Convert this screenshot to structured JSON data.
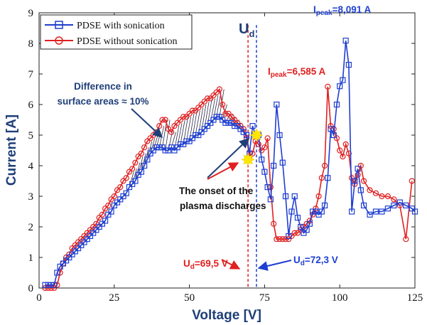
{
  "chart_data": {
    "type": "line",
    "xlabel": "Voltage [V]",
    "ylabel": "Current [A]",
    "xlim": [
      0,
      125
    ],
    "ylim": [
      0,
      9
    ],
    "xticks": [
      "0",
      "25",
      "50",
      "75",
      "100",
      "125"
    ],
    "yticks": [
      "0",
      "1",
      "2",
      "3",
      "4",
      "5",
      "6",
      "7",
      "8",
      "9"
    ],
    "legend_position": "top-left",
    "series": [
      {
        "name": "PDSE with sonication",
        "color": "#1f3fd0",
        "marker": "square",
        "x": [
          2,
          3,
          4,
          5,
          6,
          7,
          8,
          9,
          10,
          11,
          12,
          13,
          14,
          15,
          16,
          17,
          18,
          19,
          20,
          21,
          22,
          23,
          24,
          25,
          26,
          27,
          28,
          29,
          30,
          31,
          32,
          33,
          34,
          35,
          36,
          37,
          38,
          39,
          40,
          41,
          42,
          43,
          44,
          45,
          46,
          47,
          48,
          49,
          50,
          51,
          52,
          53,
          54,
          55,
          56,
          57,
          58,
          59,
          60,
          61,
          62,
          63,
          64,
          65,
          66,
          67,
          68,
          69,
          70,
          71,
          72,
          73,
          74,
          75,
          76,
          77,
          78,
          79,
          80,
          81,
          82,
          83,
          84,
          85,
          86,
          87,
          88,
          89,
          90,
          91,
          92,
          93,
          94,
          95,
          96,
          97,
          98,
          99,
          100,
          101,
          102,
          103,
          104,
          105,
          106,
          107,
          108,
          110,
          112,
          114,
          116,
          118,
          120,
          122,
          124,
          125
        ],
        "y": [
          0.1,
          0.1,
          0.1,
          0.1,
          0.5,
          0.7,
          0.8,
          0.9,
          1.0,
          1.1,
          1.2,
          1.3,
          1.4,
          1.5,
          1.6,
          1.7,
          1.8,
          1.9,
          2.0,
          2.1,
          2.2,
          2.4,
          2.5,
          2.7,
          2.8,
          2.9,
          3.0,
          3.1,
          3.3,
          3.4,
          3.5,
          3.7,
          3.8,
          4.0,
          4.2,
          4.4,
          4.5,
          4.6,
          4.6,
          4.6,
          4.5,
          4.5,
          4.6,
          4.5,
          4.6,
          4.7,
          4.7,
          4.8,
          4.8,
          4.9,
          5.0,
          5.0,
          5.1,
          5.2,
          5.3,
          5.4,
          5.5,
          5.6,
          5.6,
          5.5,
          5.4,
          5.4,
          5.4,
          5.3,
          5.3,
          5.2,
          5.1,
          5.0,
          4.4,
          5.3,
          5.0,
          5.0,
          4.2,
          3.8,
          3.3,
          2.9,
          4.0,
          6.0,
          5.0,
          4.1,
          3.0,
          1.7,
          2.5,
          3.0,
          2.3,
          2.0,
          1.8,
          1.9,
          2.1,
          2.5,
          2.5,
          2.4,
          2.5,
          2.7,
          3.6,
          5.2,
          5.0,
          6.0,
          6.6,
          6.8,
          8.09,
          7.3,
          2.5,
          3.5,
          3.9,
          3.2,
          2.7,
          2.4,
          2.5,
          2.5,
          2.6,
          2.7,
          2.8,
          2.7,
          2.6,
          2.5
        ]
      },
      {
        "name": "PDSE without sonication",
        "color": "#e02020",
        "marker": "circle",
        "x": [
          2,
          3,
          4,
          5,
          6,
          7,
          8,
          9,
          10,
          11,
          12,
          13,
          14,
          15,
          16,
          17,
          18,
          19,
          20,
          21,
          22,
          23,
          24,
          25,
          26,
          27,
          28,
          29,
          30,
          31,
          32,
          33,
          34,
          35,
          36,
          37,
          38,
          39,
          40,
          41,
          42,
          43,
          44,
          45,
          46,
          47,
          48,
          49,
          50,
          51,
          52,
          53,
          54,
          55,
          56,
          57,
          58,
          59,
          60,
          61,
          62,
          63,
          64,
          65,
          66,
          67,
          68,
          69,
          70,
          71,
          72,
          73,
          74,
          75,
          76,
          77,
          78,
          79,
          80,
          81,
          82,
          83,
          84,
          85,
          86,
          87,
          88,
          89,
          90,
          91,
          92,
          93,
          94,
          95,
          96,
          97,
          98,
          99,
          100,
          101,
          102,
          103,
          104,
          105,
          106,
          107,
          108,
          110,
          112,
          114,
          116,
          118,
          120,
          122,
          124
        ],
        "y": [
          0.0,
          0.0,
          0.0,
          0.0,
          0.1,
          0.5,
          0.8,
          1.0,
          1.1,
          1.3,
          1.4,
          1.5,
          1.6,
          1.7,
          1.8,
          1.9,
          2.0,
          2.1,
          2.3,
          2.4,
          2.6,
          2.7,
          2.9,
          3.0,
          3.2,
          3.3,
          3.5,
          3.6,
          3.8,
          3.9,
          4.1,
          4.3,
          4.4,
          4.6,
          4.8,
          4.9,
          5.0,
          5.1,
          5.3,
          5.5,
          5.5,
          5.2,
          5.1,
          5.3,
          5.4,
          5.5,
          5.6,
          5.6,
          5.7,
          5.8,
          5.8,
          5.9,
          6.0,
          6.1,
          6.2,
          6.2,
          6.3,
          6.4,
          6.5,
          6.0,
          5.7,
          5.7,
          5.6,
          5.5,
          5.4,
          5.3,
          5.2,
          4.9,
          4.3,
          4.4,
          4.8,
          4.7,
          4.5,
          4.6,
          4.9,
          3.3,
          2.1,
          1.6,
          1.6,
          1.6,
          1.6,
          1.6,
          1.7,
          1.8,
          1.8,
          1.9,
          2.0,
          2.1,
          2.2,
          2.4,
          2.6,
          3.0,
          3.6,
          4.0,
          6.585,
          5.3,
          5.2,
          4.9,
          4.5,
          4.3,
          4.7,
          4.4,
          3.6,
          3.4,
          3.7,
          4.0,
          3.5,
          3.2,
          3.1,
          3.0,
          3.0,
          2.9,
          2.7,
          1.6,
          3.5
        ]
      }
    ],
    "vlines": [
      {
        "x": 69.5,
        "color": "#e02020",
        "style": "dashed"
      },
      {
        "x": 72.3,
        "color": "#1f3fd0",
        "style": "dashed"
      }
    ],
    "highlights": [
      {
        "x": 69.5,
        "y": 4.2,
        "color": "#ffe600"
      },
      {
        "x": 72.3,
        "y": 5.0,
        "color": "#ffe600"
      }
    ],
    "annotations": {
      "ud_top_main": "U",
      "ud_top_sub": "d",
      "ipeak_blue_main": "I",
      "ipeak_blue_sub": "peak",
      "ipeak_blue_value": "=8,091 A",
      "ipeak_red_main": "I",
      "ipeak_red_sub": "peak",
      "ipeak_red_value": "=6,585 A",
      "difference_line1": "Difference in",
      "difference_line2": "surface areas ≈ 10%",
      "onset_line1": "The onset of the",
      "onset_line2": "plasma discharges",
      "ud_red_main": "U",
      "ud_red_sub": "d",
      "ud_red_value": "=69,5 V",
      "ud_blue_main": "U",
      "ud_blue_sub": "d",
      "ud_blue_value": "=72,3 V"
    },
    "colors": {
      "blue": "#1f3fd0",
      "red": "#e02020",
      "navy": "#1f3f78",
      "highlight": "#ffe600"
    }
  }
}
